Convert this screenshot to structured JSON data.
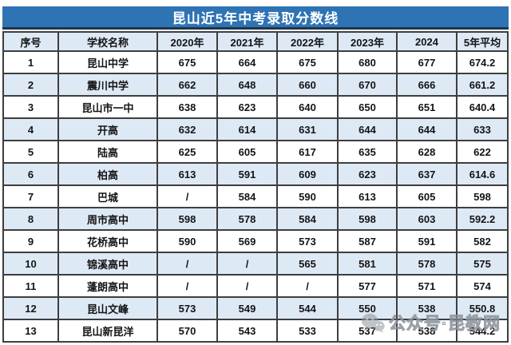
{
  "title": "昆山近5年中考录取分数线",
  "table": {
    "headers": [
      "序号",
      "学校名称",
      "2020年",
      "2021年",
      "2022年",
      "2023年",
      "2024",
      "5年平均"
    ],
    "rows": [
      [
        "1",
        "昆山中学",
        "675",
        "664",
        "675",
        "680",
        "677",
        "674.2"
      ],
      [
        "2",
        "震川中学",
        "662",
        "648",
        "660",
        "670",
        "666",
        "661.2"
      ],
      [
        "3",
        "昆山市一中",
        "638",
        "623",
        "640",
        "650",
        "651",
        "640.4"
      ],
      [
        "4",
        "开高",
        "632",
        "614",
        "631",
        "644",
        "644",
        "633"
      ],
      [
        "5",
        "陆高",
        "625",
        "605",
        "617",
        "635",
        "628",
        "622"
      ],
      [
        "6",
        "柏高",
        "613",
        "591",
        "609",
        "623",
        "637",
        "614.6"
      ],
      [
        "7",
        "巴城",
        "/",
        "584",
        "590",
        "613",
        "605",
        "598"
      ],
      [
        "8",
        "周市高中",
        "598",
        "578",
        "584",
        "598",
        "603",
        "592.2"
      ],
      [
        "9",
        "花桥高中",
        "590",
        "569",
        "573",
        "587",
        "591",
        "582"
      ],
      [
        "10",
        "锦溪高中",
        "/",
        "/",
        "565",
        "581",
        "578",
        "575"
      ],
      [
        "11",
        "蓬朗高中",
        "/",
        "/",
        "/",
        "577",
        "571",
        "574"
      ],
      [
        "12",
        "昆山文峰",
        "573",
        "549",
        "544",
        "550",
        "538",
        "550.8"
      ],
      [
        "13",
        "昆山新昆洋",
        "570",
        "543",
        "533",
        "537",
        "538",
        "544.2"
      ]
    ]
  },
  "watermark": {
    "icon": "wechat-icon",
    "text": "公众号·昆教网"
  },
  "colors": {
    "title_bg": "#2E74B5",
    "title_border": "#20344A",
    "header_bg": "#DEE9F6",
    "alt_row_bg": "#DEE9F6",
    "grid_border": "#3E3E3E",
    "watermark_gray": "#8F949B"
  }
}
